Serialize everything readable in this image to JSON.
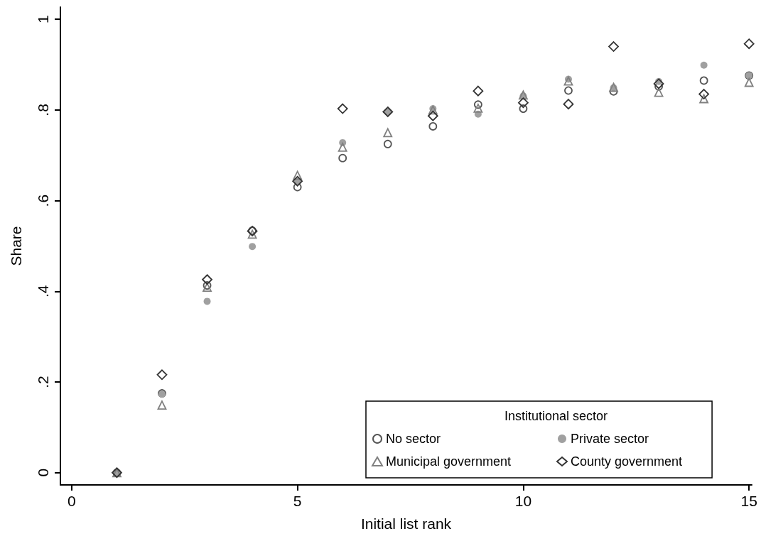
{
  "chart_data": {
    "type": "scatter",
    "xlabel": "Initial list rank",
    "ylabel": "Share",
    "legend_title": "Institutional sector",
    "legend": "bottom right",
    "grid": false,
    "x": [
      1,
      2,
      3,
      4,
      5,
      6,
      7,
      8,
      9,
      10,
      11,
      12,
      13,
      14,
      15
    ],
    "xlim": [
      -0.25,
      15.06
    ],
    "xticks": [
      0,
      5,
      10,
      15
    ],
    "ylim": [
      -0.027,
      1.027
    ],
    "yticks": [
      0,
      {
        "value": 0.2,
        "label": ".2"
      },
      {
        "value": 0.4,
        "label": ".4"
      },
      {
        "value": 0.6,
        "label": ".6"
      },
      {
        "value": 0.8,
        "label": ".8"
      },
      1
    ],
    "series": [
      {
        "name": "No sector",
        "color": "#555555",
        "marker": "circle",
        "values": [
          0,
          0.175,
          0.413,
          0.534,
          0.63,
          0.694,
          0.725,
          0.764,
          0.812,
          0.803,
          0.843,
          0.841,
          0.852,
          0.865,
          0.876
        ]
      },
      {
        "name": "Private sector",
        "color": "#a0a0a0",
        "marker": "circle",
        "values": [
          0,
          0.173,
          0.378,
          0.499,
          0.643,
          0.728,
          0.796,
          0.803,
          0.791,
          0.831,
          0.868,
          0.849,
          0.863,
          0.899,
          0.876
        ]
      },
      {
        "name": "Municipal government",
        "color": "#808080",
        "marker": "triangle",
        "values": [
          0,
          0.149,
          0.409,
          0.526,
          0.656,
          0.718,
          0.75,
          0.8,
          0.804,
          0.833,
          0.864,
          0.85,
          0.839,
          0.825,
          0.861
        ]
      },
      {
        "name": "County government",
        "color": "#333333",
        "marker": "diamond",
        "values": [
          0,
          0.216,
          0.426,
          0.533,
          0.643,
          0.803,
          0.796,
          0.787,
          0.842,
          0.816,
          0.813,
          0.94,
          0.858,
          0.835,
          0.946
        ]
      }
    ]
  }
}
